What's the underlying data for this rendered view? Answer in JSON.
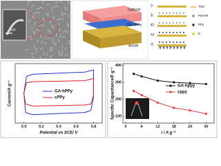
{
  "sem": {
    "scale_bar": "1um"
  },
  "schematic": {
    "labels": [
      "Cathode",
      "GA-hPPy",
      "Anode"
    ]
  },
  "steps": {
    "labels": [
      "i)",
      "ii)",
      "iii)",
      "iv)",
      "v)"
    ],
    "legend": [
      "TOS",
      "Pyrrole",
      "PPy",
      "N"
    ]
  },
  "chart_data": [
    {
      "type": "line",
      "xlabel": "Potential vs SCE/ V",
      "ylabel": "Current/A g⁻¹",
      "legend": "center",
      "xlim": [
        -0.1,
        0.9
      ],
      "xticks": [
        {
          "value": 0,
          "label": "0.0"
        },
        0.2,
        0.4,
        0.6,
        0.8
      ],
      "ylim": [
        -14,
        14
      ],
      "series": [
        {
          "name": "GA-hPPy",
          "color": "#2233cc",
          "x": [
            0,
            0.03,
            0.1,
            0.7,
            0.8,
            0.8,
            0.77,
            0.7,
            0.1,
            0.02,
            0
          ],
          "values": [
            0,
            8,
            9,
            10,
            11,
            -2,
            -8,
            -9,
            -10,
            -9,
            0
          ]
        },
        {
          "name": "cPPy",
          "color": "#dd2222",
          "x": [
            0,
            0.03,
            0.1,
            0.7,
            0.8,
            0.8,
            0.77,
            0.7,
            0.1,
            0.02,
            0
          ],
          "values": [
            0,
            5,
            5.5,
            6,
            7,
            -1,
            -5,
            -5.5,
            -6,
            -5,
            0
          ]
        }
      ]
    },
    {
      "type": "line",
      "xlabel": "i / A g⁻¹",
      "ylabel": "Specific Capacitance/F g⁻¹",
      "legend": "center-right",
      "markers": true,
      "xlim": [
        -1,
        33
      ],
      "xticks": [
        0,
        6,
        12,
        18,
        24,
        30
      ],
      "ylim": [
        60,
        410
      ],
      "yticks": [
        100,
        200,
        300,
        400
      ],
      "series": [
        {
          "name": "GA-hppy",
          "color": "#111111",
          "x": [
            3,
            6,
            12,
            18,
            24,
            30
          ],
          "values": [
            350,
            335,
            310,
            300,
            295,
            290
          ]
        },
        {
          "name": "cppy",
          "color": "#e04040",
          "x": [
            3,
            6,
            12,
            18,
            24,
            30
          ],
          "values": [
            250,
            225,
            180,
            150,
            135,
            115
          ]
        }
      ]
    }
  ]
}
